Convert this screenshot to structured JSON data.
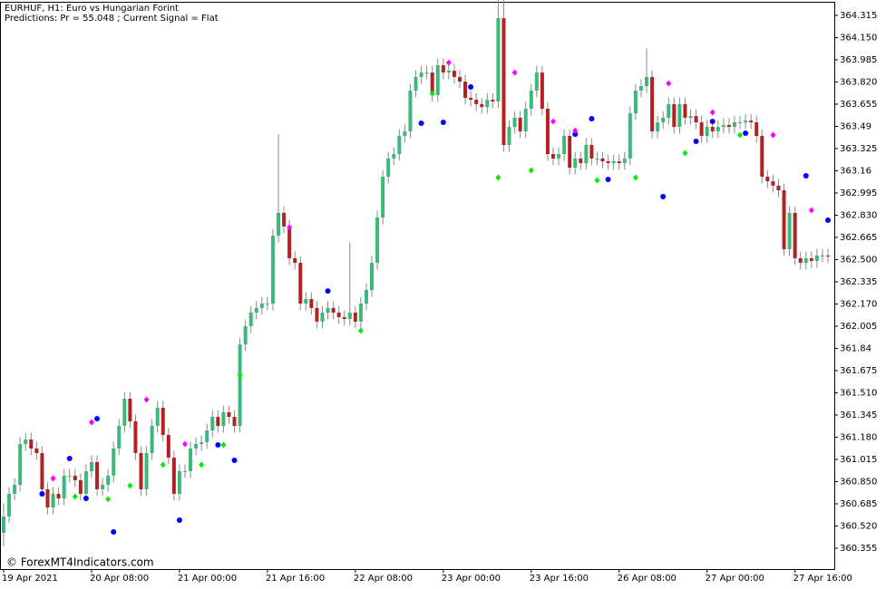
{
  "chart_data": {
    "type": "candlestick",
    "title": "EURHUF, H1:  Euro vs Hungarian Forint",
    "subtitle": "Predictions: Pr = 55.048 ; Current Signal =  Flat",
    "annotation": "© ForexMT4Indicators.com",
    "up_color": "#3cb878",
    "down_color": "#b22222",
    "wick_color": "#8a8a8a",
    "open": [
      360.47,
      360.591,
      360.759,
      360.826,
      361.129,
      361.163,
      361.096,
      361.062,
      360.793,
      360.658,
      360.759,
      360.725,
      360.894,
      360.894,
      360.86,
      360.759,
      360.927,
      360.995,
      360.793,
      360.826,
      360.894,
      361.096,
      361.264,
      361.466,
      361.298,
      361.062,
      360.793,
      361.062,
      361.264,
      361.399,
      361.197,
      361.028,
      360.759,
      360.927,
      360.927,
      361.096,
      361.129,
      361.143,
      361.23,
      361.331,
      361.264,
      361.365,
      361.331,
      361.264,
      361.87,
      362.005,
      362.106,
      362.14,
      362.173,
      362.173,
      362.678,
      362.847,
      362.746,
      362.51,
      362.476,
      362.173,
      362.207,
      362.14,
      362.039,
      362.106,
      362.14,
      362.106,
      362.072,
      362.059,
      362.106,
      362.039,
      362.173,
      362.274,
      362.476,
      362.813,
      363.116,
      363.251,
      363.284,
      363.419,
      363.453,
      363.756,
      363.857,
      363.89,
      363.89,
      363.722,
      363.944,
      363.89,
      363.904,
      363.857,
      363.823,
      363.702,
      363.688,
      363.655,
      363.634,
      363.688,
      363.675,
      364.294,
      363.352,
      363.486,
      363.554,
      363.453,
      363.621,
      363.756,
      363.89,
      363.621,
      363.284,
      363.251,
      363.284,
      363.419,
      363.183,
      363.251,
      363.217,
      363.352,
      363.251,
      363.251,
      363.23,
      363.217,
      363.23,
      363.217,
      363.251,
      363.587,
      363.756,
      363.789,
      363.857,
      363.453,
      363.52,
      363.554,
      363.655,
      363.486,
      363.655,
      363.554,
      363.567,
      363.52,
      363.419,
      363.486,
      363.453,
      363.486,
      363.5,
      363.486,
      363.52,
      363.52,
      363.533,
      363.52,
      363.419,
      363.116,
      363.082,
      363.049,
      363.015,
      362.577,
      362.847,
      362.51,
      362.476,
      362.51,
      362.49,
      362.53,
      362.53
    ],
    "high": [
      360.69,
      360.809,
      360.876,
      361.179,
      361.213,
      361.213,
      361.146,
      361.112,
      360.843,
      360.809,
      360.809,
      360.944,
      360.944,
      360.944,
      360.91,
      360.977,
      361.045,
      361.045,
      360.876,
      360.944,
      361.146,
      361.314,
      361.516,
      361.516,
      361.348,
      361.112,
      361.112,
      361.314,
      361.449,
      361.449,
      361.247,
      361.078,
      360.977,
      360.977,
      361.146,
      361.179,
      361.193,
      361.28,
      361.381,
      361.381,
      361.415,
      361.415,
      361.381,
      361.92,
      362.055,
      362.156,
      362.19,
      362.223,
      362.223,
      362.728,
      363.432,
      362.897,
      362.796,
      362.56,
      362.526,
      362.257,
      362.257,
      362.19,
      362.156,
      362.19,
      362.19,
      362.156,
      362.122,
      362.625,
      362.156,
      362.223,
      362.324,
      362.526,
      362.863,
      363.166,
      363.301,
      363.334,
      363.469,
      363.503,
      363.806,
      363.907,
      363.94,
      363.94,
      363.94,
      363.994,
      363.994,
      363.954,
      363.954,
      363.907,
      363.873,
      363.752,
      363.738,
      363.705,
      363.738,
      363.738,
      364.48,
      364.43,
      363.536,
      363.604,
      363.604,
      363.671,
      363.806,
      363.94,
      363.94,
      363.671,
      363.334,
      363.334,
      363.469,
      363.469,
      363.301,
      363.301,
      363.402,
      363.402,
      363.301,
      363.301,
      363.28,
      363.28,
      363.28,
      363.301,
      363.637,
      363.806,
      363.839,
      364.07,
      363.907,
      363.57,
      363.604,
      363.705,
      363.705,
      363.705,
      363.705,
      363.617,
      363.617,
      363.57,
      363.536,
      363.536,
      363.536,
      363.55,
      363.55,
      363.57,
      363.57,
      363.583,
      363.583,
      363.57,
      363.469,
      363.166,
      363.132,
      363.099,
      363.065,
      362.897,
      362.897,
      362.56,
      362.56,
      362.56,
      362.58,
      362.58,
      362.58
    ],
    "low": [
      360.37,
      360.541,
      360.709,
      360.776,
      361.079,
      361.046,
      361.012,
      360.743,
      360.608,
      360.608,
      360.675,
      360.675,
      360.844,
      360.81,
      360.709,
      360.709,
      360.877,
      360.743,
      360.743,
      360.776,
      360.844,
      361.046,
      361.214,
      361.248,
      361.012,
      360.743,
      360.743,
      361.012,
      361.214,
      361.147,
      360.978,
      360.709,
      360.709,
      360.877,
      360.877,
      361.046,
      361.079,
      361.093,
      361.18,
      361.214,
      361.214,
      361.281,
      361.214,
      361.214,
      361.82,
      361.955,
      362.056,
      362.09,
      362.123,
      362.123,
      362.628,
      362.696,
      362.46,
      362.426,
      362.123,
      362.123,
      362.09,
      361.989,
      361.989,
      362.056,
      362.056,
      362.022,
      362.009,
      362.009,
      361.989,
      361.989,
      362.123,
      362.224,
      362.426,
      362.763,
      363.066,
      363.201,
      363.234,
      363.369,
      363.403,
      363.706,
      363.807,
      363.84,
      363.672,
      363.672,
      363.84,
      363.84,
      363.807,
      363.773,
      363.652,
      363.638,
      363.605,
      363.584,
      363.584,
      363.625,
      363.625,
      363.302,
      363.302,
      363.436,
      363.403,
      363.403,
      363.571,
      363.706,
      363.571,
      363.234,
      363.201,
      363.201,
      363.234,
      363.133,
      363.133,
      363.167,
      363.167,
      363.201,
      363.201,
      363.18,
      363.167,
      363.167,
      363.167,
      363.167,
      363.201,
      363.537,
      363.706,
      363.739,
      363.403,
      363.403,
      363.47,
      363.504,
      363.436,
      363.436,
      363.504,
      363.504,
      363.47,
      363.369,
      363.369,
      363.403,
      363.403,
      363.436,
      363.436,
      363.436,
      363.47,
      363.47,
      363.47,
      363.369,
      363.066,
      363.032,
      362.999,
      362.965,
      362.527,
      362.527,
      362.46,
      362.426,
      362.426,
      362.44,
      362.44,
      362.48,
      362.473
    ],
    "close": [
      360.591,
      360.759,
      360.826,
      361.129,
      361.163,
      361.096,
      361.062,
      360.793,
      360.658,
      360.759,
      360.725,
      360.894,
      360.894,
      360.86,
      360.759,
      360.927,
      360.995,
      360.793,
      360.826,
      360.894,
      361.096,
      361.264,
      361.466,
      361.298,
      361.062,
      360.793,
      361.062,
      361.264,
      361.399,
      361.197,
      361.028,
      360.759,
      360.927,
      360.927,
      361.096,
      361.129,
      361.143,
      361.23,
      361.331,
      361.264,
      361.365,
      361.331,
      361.264,
      361.87,
      362.005,
      362.106,
      362.14,
      362.173,
      362.173,
      362.678,
      362.847,
      362.746,
      362.51,
      362.476,
      362.173,
      362.207,
      362.14,
      362.039,
      362.106,
      362.14,
      362.106,
      362.072,
      362.059,
      362.106,
      362.039,
      362.173,
      362.274,
      362.476,
      362.813,
      363.116,
      363.251,
      363.284,
      363.419,
      363.453,
      363.756,
      363.857,
      363.89,
      363.89,
      363.722,
      363.944,
      363.89,
      363.904,
      363.857,
      363.823,
      363.702,
      363.688,
      363.655,
      363.634,
      363.688,
      363.675,
      364.294,
      363.352,
      363.486,
      363.554,
      363.453,
      363.621,
      363.756,
      363.89,
      363.621,
      363.284,
      363.251,
      363.284,
      363.419,
      363.183,
      363.251,
      363.217,
      363.352,
      363.251,
      363.251,
      363.23,
      363.217,
      363.23,
      363.217,
      363.251,
      363.587,
      363.756,
      363.789,
      363.857,
      363.453,
      363.52,
      363.554,
      363.655,
      363.486,
      363.655,
      363.554,
      363.567,
      363.52,
      363.419,
      363.486,
      363.453,
      363.486,
      363.5,
      363.486,
      363.52,
      363.52,
      363.533,
      363.52,
      363.419,
      363.116,
      363.082,
      363.049,
      363.015,
      362.577,
      362.847,
      362.51,
      362.476,
      362.51,
      362.49,
      362.53,
      362.53,
      362.523
    ],
    "signals": [
      {
        "color": "#0000ff",
        "shape": "circle",
        "x": [
          7,
          12,
          15,
          17,
          20,
          32,
          39,
          42,
          59,
          76,
          80,
          85,
          104,
          107,
          110,
          120,
          126,
          129,
          135,
          146,
          150
        ],
        "values": [
          360.759,
          361.022,
          360.725,
          361.318,
          360.476,
          360.564,
          361.123,
          361.008,
          362.267,
          363.513,
          363.52,
          363.783,
          363.432,
          363.547,
          363.096,
          362.968,
          363.379,
          363.527,
          363.439,
          363.123,
          362.793
        ]
      },
      {
        "color": "#ff00ff",
        "shape": "diamond",
        "x": [
          9,
          16,
          26,
          33,
          52,
          81,
          93,
          100,
          104,
          121,
          129,
          140,
          147
        ],
        "values": [
          360.874,
          361.291,
          361.459,
          361.129,
          362.739,
          363.964,
          363.89,
          363.527,
          363.459,
          363.809,
          363.594,
          363.426,
          362.867
        ]
      },
      {
        "color": "#00ee00",
        "shape": "diamond",
        "x": [
          13,
          19,
          23,
          29,
          36,
          40,
          43,
          65,
          78,
          90,
          96,
          108,
          115,
          124,
          134
        ],
        "values": [
          360.739,
          360.719,
          360.82,
          360.975,
          360.975,
          361.123,
          361.641,
          361.971,
          363.735,
          363.109,
          363.163,
          363.089,
          363.109,
          363.291,
          363.426
        ]
      }
    ],
    "xlim": [
      0,
      150
    ],
    "xticks": [
      {
        "value": 0,
        "label": "19 Apr 2021"
      },
      {
        "value": 16,
        "label": "20 Apr 08:00"
      },
      {
        "value": 32,
        "label": "21 Apr 00:00"
      },
      {
        "value": 48,
        "label": "21 Apr 16:00"
      },
      {
        "value": 64,
        "label": "22 Apr 08:00"
      },
      {
        "value": 80,
        "label": "23 Apr 00:00"
      },
      {
        "value": 96,
        "label": "23 Apr 16:00"
      },
      {
        "value": 112,
        "label": "26 Apr 08:00"
      },
      {
        "value": 128,
        "label": "27 Apr 00:00"
      },
      {
        "value": 144,
        "label": "27 Apr 16:00"
      }
    ],
    "ylim": [
      360.2,
      364.409
    ],
    "yticks": [
      364.315,
      {
        "value": 364.15,
        "label": "364.150"
      },
      363.985,
      {
        "value": 363.82,
        "label": "363.820"
      },
      363.655,
      363.49,
      363.325,
      363.16,
      362.995,
      {
        "value": 362.83,
        "label": "362.830"
      },
      362.665,
      {
        "value": 362.5,
        "label": "362.500"
      },
      362.335,
      {
        "value": 362.17,
        "label": "362.170"
      },
      362.005,
      361.84,
      361.675,
      {
        "value": 361.51,
        "label": "361.510"
      },
      361.345,
      {
        "value": 361.18,
        "label": "361.180"
      },
      361.015,
      {
        "value": 360.85,
        "label": "360.850"
      },
      360.685,
      {
        "value": 360.52,
        "label": "360.520"
      },
      360.355
    ]
  }
}
